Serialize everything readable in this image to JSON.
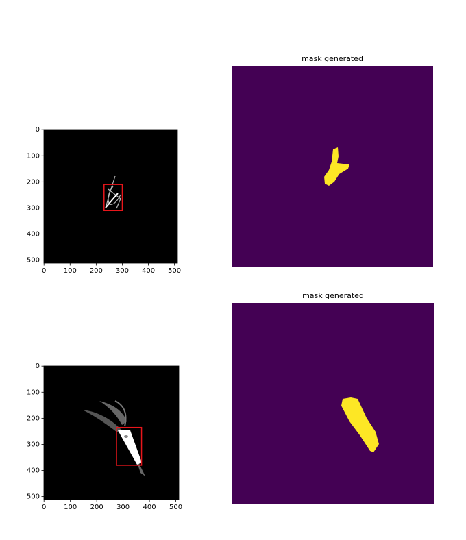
{
  "chart_data": [
    {
      "type": "image",
      "xlim": [
        -0.5,
        511.5
      ],
      "ylim": [
        511.5,
        -0.5
      ],
      "xticks": [
        0,
        100,
        200,
        300,
        400,
        500
      ],
      "yticks": [
        0,
        100,
        200,
        300,
        400,
        500
      ],
      "box": {
        "x": 230,
        "y": 210,
        "width": 70,
        "height": 100
      },
      "box_color": "#e8161b"
    },
    {
      "type": "image",
      "title": "mask generated"
    },
    {
      "type": "image",
      "xlim": [
        -0.5,
        511.5
      ],
      "ylim": [
        511.5,
        -0.5
      ],
      "xticks": [
        0,
        100,
        200,
        300,
        400,
        500
      ],
      "yticks": [
        0,
        100,
        200,
        300,
        400,
        500
      ],
      "box": {
        "x": 275,
        "y": 235,
        "width": 95,
        "height": 145
      },
      "box_color": "#e8161b"
    },
    {
      "type": "image",
      "title": "mask generated"
    }
  ]
}
